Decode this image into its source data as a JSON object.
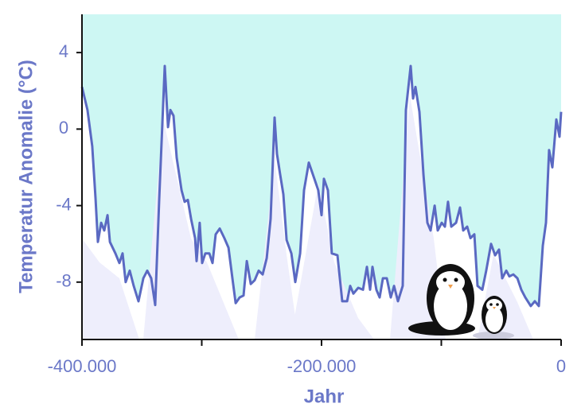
{
  "chart_data": {
    "type": "line",
    "ylabel": "Temperatur Anomalie (°C)",
    "xlabel": "Jahr",
    "x": [
      -400000,
      -395400,
      -391400,
      -388700,
      -386700,
      -384000,
      -381400,
      -378700,
      -376700,
      -372100,
      -368800,
      -366100,
      -363500,
      -360100,
      -356800,
      -352800,
      -348800,
      -345500,
      -342200,
      -338900,
      -335500,
      -330900,
      -328200,
      -326200,
      -323600,
      -320900,
      -316900,
      -314300,
      -311600,
      -308900,
      -305600,
      -304300,
      -301700,
      -299700,
      -297000,
      -293700,
      -291000,
      -288400,
      -285000,
      -281100,
      -277700,
      -274400,
      -271700,
      -268400,
      -265100,
      -262400,
      -259100,
      -255800,
      -252500,
      -249200,
      -245800,
      -242500,
      -239200,
      -237200,
      -234500,
      -231900,
      -229200,
      -225200,
      -221900,
      -217900,
      -214600,
      -210600,
      -206000,
      -202700,
      -200000,
      -198000,
      -194700,
      -191400,
      -186700,
      -182700,
      -178700,
      -176100,
      -173400,
      -169400,
      -165400,
      -162100,
      -159500,
      -157500,
      -154200,
      -151500,
      -148800,
      -145500,
      -142200,
      -139500,
      -136200,
      -132200,
      -129600,
      -125600,
      -123600,
      -121600,
      -118300,
      -114900,
      -111600,
      -109000,
      -105600,
      -103000,
      -99700,
      -97000,
      -94400,
      -91700,
      -87700,
      -84400,
      -81700,
      -78400,
      -75700,
      -72400,
      -69800,
      -65800,
      -62500,
      -58500,
      -55100,
      -51800,
      -49200,
      -45800,
      -43200,
      -39900,
      -36500,
      -33200,
      -29900,
      -25300,
      -21900,
      -18600,
      -15300,
      -12600,
      -10000,
      -7300,
      -4000,
      -1300,
      0
    ],
    "values": [
      2.2,
      1.0,
      -0.9,
      -3.6,
      -5.9,
      -4.9,
      -5.3,
      -4.5,
      -5.9,
      -6.5,
      -7.0,
      -6.5,
      -8.0,
      -7.4,
      -8.2,
      -9.0,
      -7.8,
      -7.4,
      -7.8,
      -9.2,
      -3.6,
      3.3,
      0.1,
      1.0,
      0.7,
      -1.5,
      -3.2,
      -3.8,
      -3.7,
      -4.7,
      -5.7,
      -6.9,
      -4.9,
      -7.0,
      -6.5,
      -6.5,
      -7.0,
      -5.5,
      -5.2,
      -5.7,
      -6.2,
      -7.8,
      -9.1,
      -8.8,
      -8.7,
      -6.9,
      -8.1,
      -7.9,
      -7.4,
      -7.6,
      -6.75,
      -4.7,
      0.6,
      -1.3,
      -2.4,
      -3.4,
      -5.8,
      -6.5,
      -8.0,
      -6.5,
      -3.2,
      -1.75,
      -2.6,
      -3.2,
      -4.5,
      -2.6,
      -3.2,
      -6.5,
      -6.6,
      -9.0,
      -9.0,
      -8.2,
      -8.6,
      -8.3,
      -8.4,
      -7.2,
      -8.4,
      -7.2,
      -8.4,
      -8.8,
      -7.8,
      -7.8,
      -8.8,
      -8.2,
      -9.0,
      -8.2,
      1.0,
      3.3,
      1.6,
      2.2,
      0.9,
      -2.4,
      -4.9,
      -5.3,
      -4.0,
      -5.3,
      -4.9,
      -5.1,
      -3.8,
      -5.1,
      -4.9,
      -4.1,
      -5.3,
      -5.1,
      -5.7,
      -5.5,
      -8.2,
      -8.4,
      -7.4,
      -6.0,
      -6.6,
      -6.3,
      -7.8,
      -7.4,
      -7.7,
      -7.6,
      -7.8,
      -8.4,
      -8.8,
      -9.25,
      -9.0,
      -9.25,
      -6.1,
      -4.9,
      -1.1,
      -2.0,
      0.5,
      -0.4,
      0.9
    ],
    "color": "#5a69c2",
    "fill_above": "#cdf7f3",
    "xlim": [
      -400000,
      0
    ],
    "ylim": [
      -11,
      6
    ],
    "xticks": [
      {
        "value": -400000,
        "label": "-400.000"
      },
      {
        "value": -200000,
        "label": "-200.000"
      },
      0
    ],
    "xminorticks": [
      -300000,
      -100000
    ],
    "yticks": [
      4,
      0,
      -4,
      -8
    ]
  }
}
